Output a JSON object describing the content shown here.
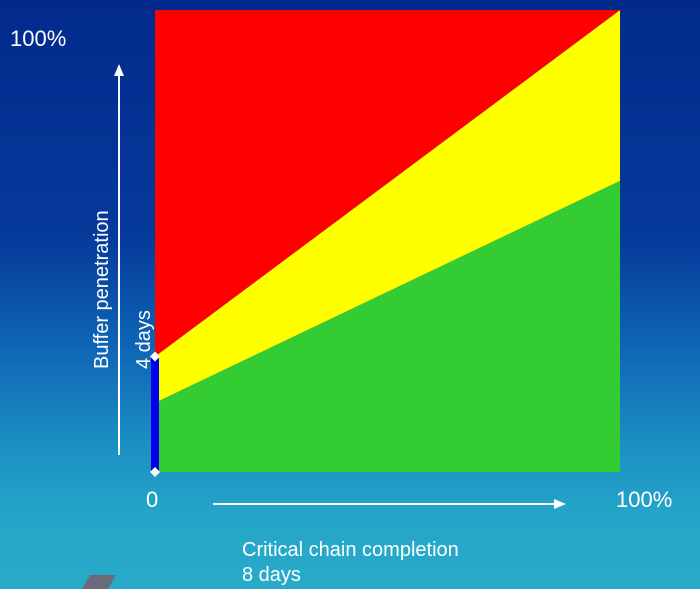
{
  "chart_data": {
    "type": "area",
    "x_axis": {
      "label": "Critical chain completion",
      "sublabel": "8 days",
      "min_label": "0",
      "max_label": "100%",
      "range": [
        0,
        100
      ]
    },
    "y_axis": {
      "label": "Buffer penetration",
      "sublabel": "4 days",
      "max_label": "100%",
      "range": [
        0,
        100
      ]
    },
    "zones": [
      {
        "name": "green",
        "color": "#33cc33",
        "lower": [
          [
            0,
            0
          ],
          [
            100,
            0
          ]
        ],
        "upper": [
          [
            0,
            15
          ],
          [
            100,
            63
          ]
        ]
      },
      {
        "name": "yellow",
        "color": "#ffff00",
        "lower": [
          [
            0,
            15
          ],
          [
            100,
            63
          ]
        ],
        "upper": [
          [
            0,
            25
          ],
          [
            100,
            100
          ]
        ]
      },
      {
        "name": "red",
        "color": "#ff0000",
        "lower": [
          [
            0,
            25
          ],
          [
            100,
            100
          ]
        ],
        "upper": [
          [
            0,
            100
          ],
          [
            100,
            100
          ]
        ]
      }
    ],
    "initial_buffer_marker": {
      "from": 0,
      "to": 25,
      "color": "#0000ee"
    },
    "grid": false,
    "legend": "none"
  }
}
